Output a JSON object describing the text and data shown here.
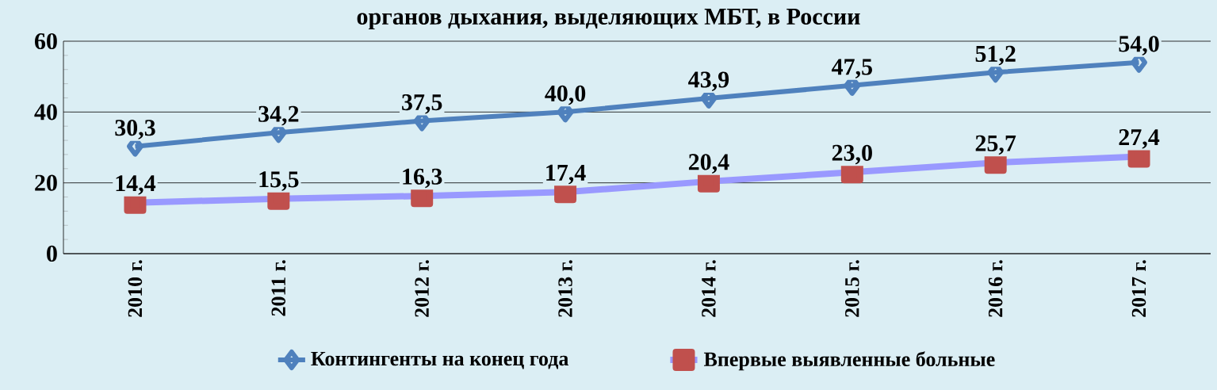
{
  "chart_data": {
    "type": "line",
    "title": "органов дыхания, выделяющих МБТ, в России",
    "categories": [
      "2010 г.",
      "2011 г.",
      "2012 г.",
      "2013 г.",
      "2014 г.",
      "2015 г.",
      "2016 г.",
      "2017 г."
    ],
    "series": [
      {
        "name": "Контингенты на конец года",
        "color": "#4f81bd",
        "marker": "diamond",
        "values": [
          30.3,
          34.2,
          37.5,
          40.0,
          43.9,
          47.5,
          51.2,
          54.0
        ],
        "value_labels": [
          "30,3",
          "34,2",
          "37,5",
          "40,0",
          "43,9",
          "47,5",
          "51,2",
          "54,0"
        ]
      },
      {
        "name": "Впервые выявленные больные",
        "color": "#9999ff",
        "colors": [
          "#c0504d",
          "#c0504d",
          "#c0504d",
          "#c0504d",
          "#c0504d",
          "#c0504d",
          "#c0504d",
          "#c0504d"
        ],
        "marker": "square",
        "values": [
          14.4,
          15.5,
          16.3,
          17.4,
          20.4,
          23.0,
          25.7,
          27.4
        ],
        "value_labels": [
          "14,4",
          "15,5",
          "16,3",
          "17,4",
          "20,4",
          "23,0",
          "25,7",
          "27,4"
        ]
      }
    ],
    "ylim": [
      0,
      60
    ],
    "yticks": [
      0,
      20,
      40,
      60
    ],
    "grid": "y",
    "legend": "bottom"
  }
}
